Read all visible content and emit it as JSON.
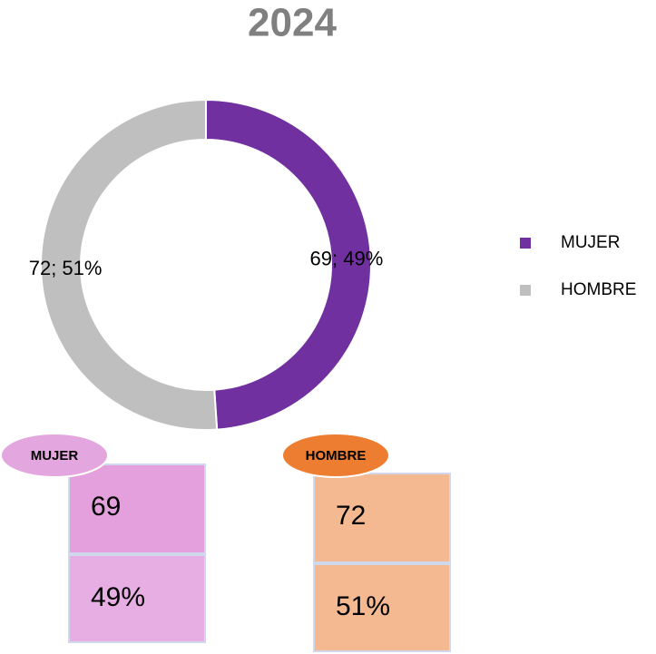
{
  "chart_data": {
    "type": "donut",
    "title": "2024",
    "categories": [
      "MUJER",
      "HOMBRE"
    ],
    "values": [
      69,
      72
    ],
    "value_labels": [
      "69; 49%",
      "72; 51%"
    ],
    "colors": [
      "#7030a0",
      "#bfbfbf"
    ],
    "legend": "right"
  },
  "cards": [
    {
      "label": "MUJER",
      "count": 69,
      "share": "49%",
      "badge_color": "#e3a6df",
      "color": "#e4a0dc",
      "color2": "#e6aee3"
    },
    {
      "label": "HOMBRE",
      "count": 72,
      "share": "51%",
      "badge_color": "#ed7d31",
      "color": "#f4b990",
      "color2": "#f4b990"
    }
  ]
}
